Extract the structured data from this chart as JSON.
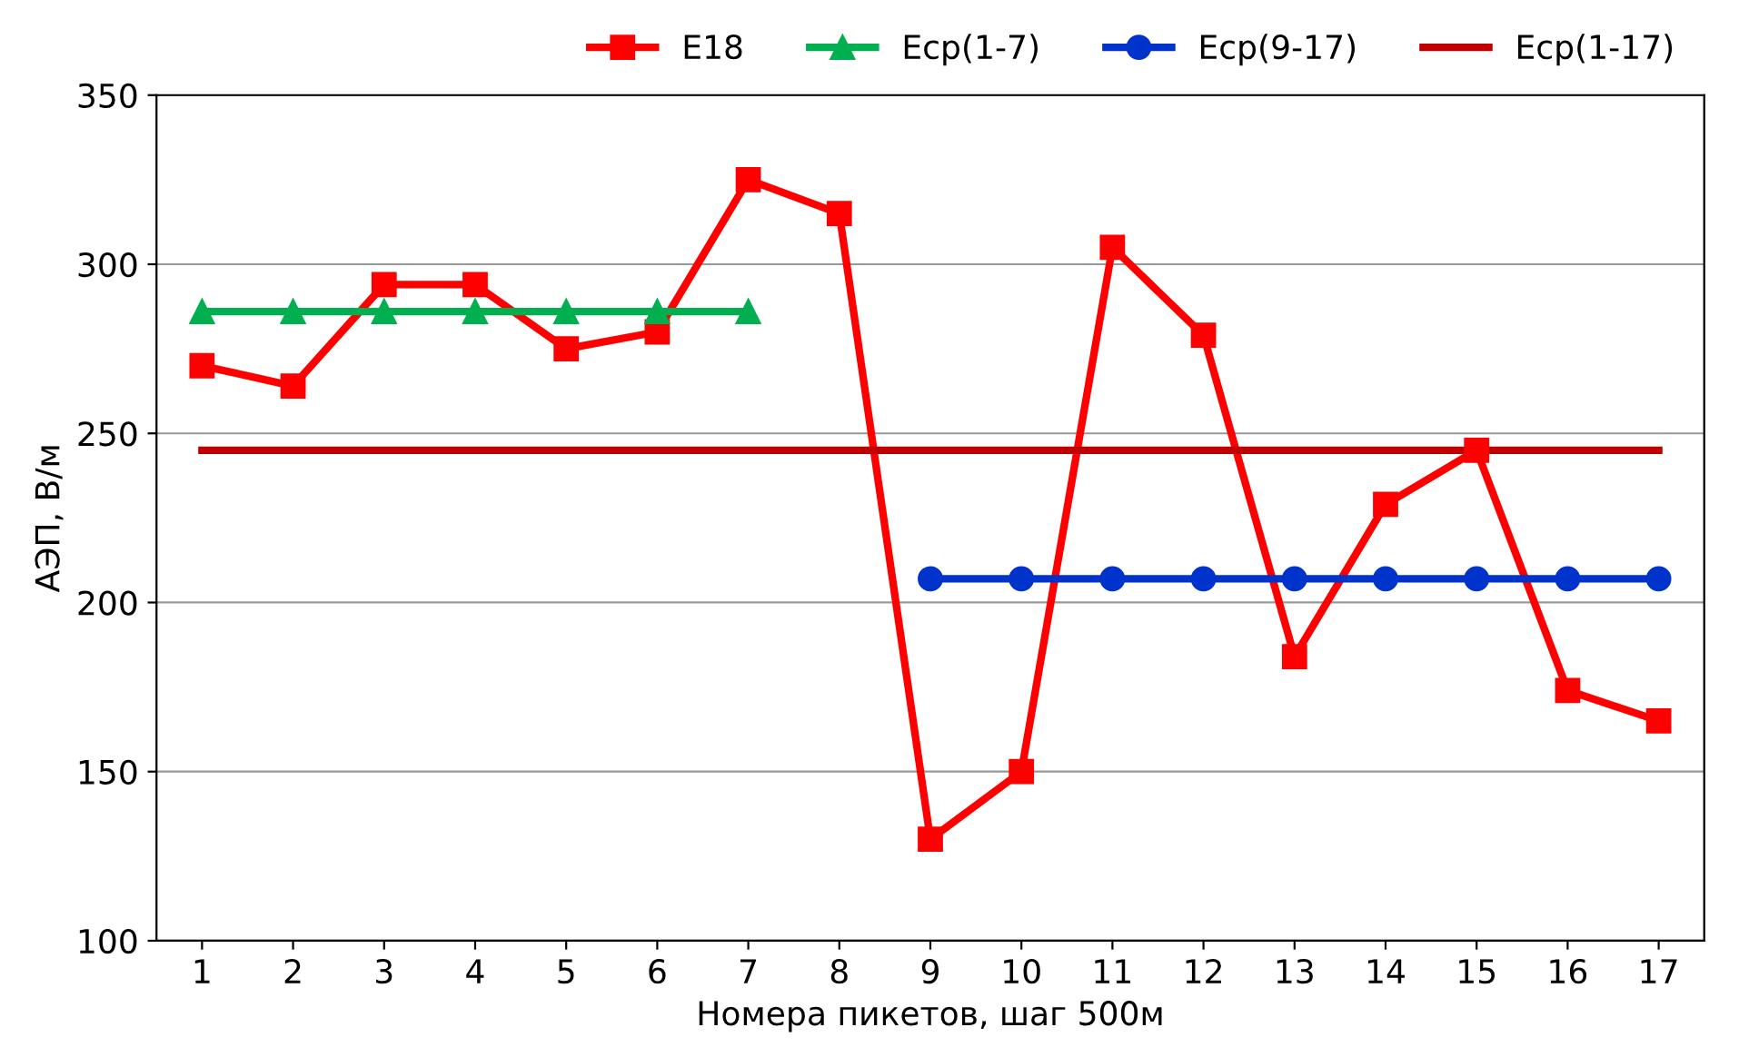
{
  "chart_data": {
    "type": "line",
    "xlabel": "Номера пикетов, шаг 500м",
    "ylabel": "АЭП, В/м",
    "categories": [
      "1",
      "2",
      "3",
      "4",
      "5",
      "6",
      "7",
      "8",
      "9",
      "10",
      "11",
      "12",
      "13",
      "14",
      "15",
      "16",
      "17"
    ],
    "ylim": [
      100,
      350
    ],
    "yticks": [
      100,
      150,
      200,
      250,
      300,
      350
    ],
    "grid": "y",
    "legend": "top right",
    "line_style": "solid",
    "series": [
      {
        "name": "E18",
        "color": "#ff0000",
        "marker": "square",
        "values": [
          270,
          264,
          294,
          294,
          275,
          280,
          325,
          315,
          130,
          150,
          305,
          279,
          184,
          229,
          245,
          174,
          165
        ]
      },
      {
        "name": "Eср(1-7)",
        "color": "#00b050",
        "marker": "triangle",
        "values": [
          286,
          286,
          286,
          286,
          286,
          286,
          286,
          null,
          null,
          null,
          null,
          null,
          null,
          null,
          null,
          null,
          null
        ]
      },
      {
        "name": "Eср(9-17)",
        "color": "#0033cc",
        "marker": "circle",
        "values": [
          null,
          null,
          null,
          null,
          null,
          null,
          null,
          null,
          207,
          207,
          207,
          207,
          207,
          207,
          207,
          207,
          207
        ]
      },
      {
        "name": "Eср(1-17)",
        "color": "#c00000",
        "marker": "none",
        "values": [
          245,
          245,
          245,
          245,
          245,
          245,
          245,
          245,
          245,
          245,
          245,
          245,
          245,
          245,
          245,
          245,
          245
        ]
      }
    ]
  }
}
